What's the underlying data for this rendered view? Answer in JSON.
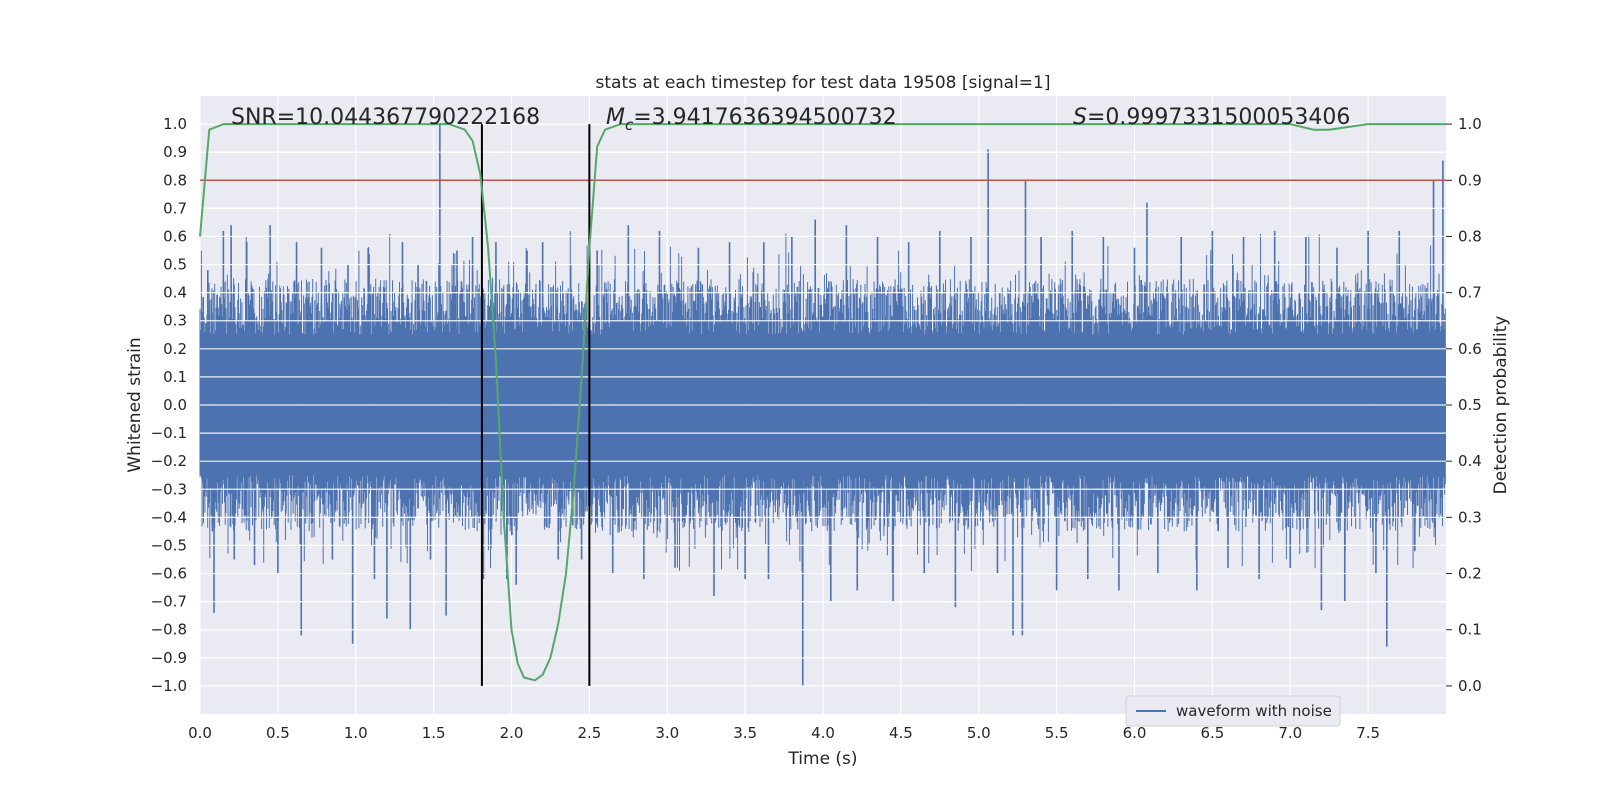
{
  "chart_data": {
    "type": "line",
    "title": "stats at each timestep for test data 19508 [signal=1]",
    "xlabel": "Time (s)",
    "ylabel_left": "Whitened strain",
    "ylabel_right": "Detection probability",
    "xlim": [
      0.0,
      8.0
    ],
    "ylim_left": [
      -1.1,
      1.1
    ],
    "ylim_right": [
      -0.05,
      1.05
    ],
    "x_ticks": [
      0.0,
      0.5,
      1.0,
      1.5,
      2.0,
      2.5,
      3.0,
      3.5,
      4.0,
      4.5,
      5.0,
      5.5,
      6.0,
      6.5,
      7.0,
      7.5
    ],
    "x_tick_labels": [
      "0.0",
      "0.5",
      "1.0",
      "1.5",
      "2.0",
      "2.5",
      "3.0",
      "3.5",
      "4.0",
      "4.5",
      "5.0",
      "5.5",
      "6.0",
      "6.5",
      "7.0",
      "7.5"
    ],
    "y_left_ticks": [
      1.0,
      0.9,
      0.8,
      0.7,
      0.6,
      0.5,
      0.4,
      0.3,
      0.2,
      0.1,
      0.0,
      -0.1,
      -0.2,
      -0.3,
      -0.4,
      -0.5,
      -0.6,
      -0.7,
      -0.8,
      -0.9,
      -1.0
    ],
    "y_left_tick_labels": [
      "1.0",
      "0.9",
      "0.8",
      "0.7",
      "0.6",
      "0.5",
      "0.4",
      "0.3",
      "0.2",
      "0.1",
      "0.0",
      "−0.1",
      "−0.2",
      "−0.3",
      "−0.4",
      "−0.5",
      "−0.6",
      "−0.7",
      "−0.8",
      "−0.9",
      "−1.0"
    ],
    "y_right_ticks": [
      1.0,
      0.9,
      0.8,
      0.7,
      0.6,
      0.5,
      0.4,
      0.3,
      0.2,
      0.1,
      0.0
    ],
    "y_right_tick_labels": [
      "1.0",
      "0.9",
      "0.8",
      "0.7",
      "0.6",
      "0.5",
      "0.4",
      "0.3",
      "0.2",
      "0.1",
      "0.0"
    ],
    "annotations": {
      "snr": "SNR=10.044367790222168",
      "mc_symbol": "M",
      "mc_sub": "c",
      "mc_value": "=3.9417636394500732",
      "s_symbol": "S",
      "s_value": "=0.9997331500053406"
    },
    "series": [
      {
        "name": "waveform with noise",
        "axis": "left",
        "color": "#4c72b0",
        "band_low": -0.2,
        "band_high": 0.2,
        "spikes": [
          {
            "x": 0.05,
            "y": 0.48
          },
          {
            "x": 0.08,
            "y": -0.45
          },
          {
            "x": 0.09,
            "y": -0.74
          },
          {
            "x": 0.15,
            "y": 0.62
          },
          {
            "x": 0.2,
            "y": 0.64
          },
          {
            "x": 0.22,
            "y": -0.55
          },
          {
            "x": 0.3,
            "y": 0.58
          },
          {
            "x": 0.35,
            "y": -0.57
          },
          {
            "x": 0.45,
            "y": 0.64
          },
          {
            "x": 0.5,
            "y": -0.6
          },
          {
            "x": 0.62,
            "y": 0.58
          },
          {
            "x": 0.65,
            "y": -0.82
          },
          {
            "x": 0.78,
            "y": 0.56
          },
          {
            "x": 0.85,
            "y": -0.55
          },
          {
            "x": 0.95,
            "y": 0.5
          },
          {
            "x": 0.98,
            "y": -0.85
          },
          {
            "x": 1.08,
            "y": 0.56
          },
          {
            "x": 1.12,
            "y": -0.62
          },
          {
            "x": 1.2,
            "y": -0.76
          },
          {
            "x": 1.3,
            "y": 0.58
          },
          {
            "x": 1.35,
            "y": -0.8
          },
          {
            "x": 1.4,
            "y": 0.5
          },
          {
            "x": 1.48,
            "y": -0.55
          },
          {
            "x": 1.54,
            "y": 1.0
          },
          {
            "x": 1.58,
            "y": -0.75
          },
          {
            "x": 1.65,
            "y": 0.55
          },
          {
            "x": 1.75,
            "y": 0.6
          },
          {
            "x": 1.82,
            "y": -0.62
          },
          {
            "x": 1.9,
            "y": 0.58
          },
          {
            "x": 1.97,
            "y": -0.62
          },
          {
            "x": 2.03,
            "y": -0.64
          },
          {
            "x": 2.1,
            "y": 0.55
          },
          {
            "x": 2.2,
            "y": 0.58
          },
          {
            "x": 2.3,
            "y": -0.55
          },
          {
            "x": 2.38,
            "y": 0.5
          },
          {
            "x": 2.45,
            "y": -0.55
          },
          {
            "x": 2.55,
            "y": 0.55
          },
          {
            "x": 2.65,
            "y": -0.6
          },
          {
            "x": 2.75,
            "y": 0.64
          },
          {
            "x": 2.85,
            "y": -0.62
          },
          {
            "x": 2.95,
            "y": 0.62
          },
          {
            "x": 3.05,
            "y": -0.58
          },
          {
            "x": 3.2,
            "y": 0.56
          },
          {
            "x": 3.3,
            "y": -0.68
          },
          {
            "x": 3.4,
            "y": 0.58
          },
          {
            "x": 3.5,
            "y": -0.62
          },
          {
            "x": 3.62,
            "y": 0.58
          },
          {
            "x": 3.65,
            "y": -0.62
          },
          {
            "x": 3.8,
            "y": 0.6
          },
          {
            "x": 3.87,
            "y": -1.0
          },
          {
            "x": 3.95,
            "y": 0.66
          },
          {
            "x": 4.05,
            "y": -0.7
          },
          {
            "x": 4.15,
            "y": 0.64
          },
          {
            "x": 4.22,
            "y": -0.66
          },
          {
            "x": 4.35,
            "y": 0.6
          },
          {
            "x": 4.45,
            "y": -0.7
          },
          {
            "x": 4.55,
            "y": 0.58
          },
          {
            "x": 4.65,
            "y": -0.6
          },
          {
            "x": 4.75,
            "y": 0.62
          },
          {
            "x": 4.85,
            "y": -0.72
          },
          {
            "x": 4.95,
            "y": 0.6
          },
          {
            "x": 5.06,
            "y": 0.91
          },
          {
            "x": 5.12,
            "y": -0.6
          },
          {
            "x": 5.22,
            "y": -0.82
          },
          {
            "x": 5.28,
            "y": -0.82
          },
          {
            "x": 5.3,
            "y": 0.8
          },
          {
            "x": 5.4,
            "y": 0.6
          },
          {
            "x": 5.5,
            "y": -0.66
          },
          {
            "x": 5.6,
            "y": 0.62
          },
          {
            "x": 5.7,
            "y": -0.62
          },
          {
            "x": 5.8,
            "y": 0.6
          },
          {
            "x": 5.9,
            "y": -0.66
          },
          {
            "x": 6.0,
            "y": 0.56
          },
          {
            "x": 6.08,
            "y": 0.72
          },
          {
            "x": 6.15,
            "y": -0.6
          },
          {
            "x": 6.3,
            "y": 0.6
          },
          {
            "x": 6.4,
            "y": -0.66
          },
          {
            "x": 6.5,
            "y": 0.62
          },
          {
            "x": 6.6,
            "y": -0.58
          },
          {
            "x": 6.7,
            "y": 0.6
          },
          {
            "x": 6.8,
            "y": -0.62
          },
          {
            "x": 6.9,
            "y": 0.62
          },
          {
            "x": 7.0,
            "y": -0.58
          },
          {
            "x": 7.1,
            "y": 0.6
          },
          {
            "x": 7.2,
            "y": -0.73
          },
          {
            "x": 7.3,
            "y": 0.56
          },
          {
            "x": 7.35,
            "y": -0.7
          },
          {
            "x": 7.5,
            "y": 0.62
          },
          {
            "x": 7.55,
            "y": -0.6
          },
          {
            "x": 7.62,
            "y": -0.86
          },
          {
            "x": 7.7,
            "y": 0.62
          },
          {
            "x": 7.8,
            "y": -0.52
          },
          {
            "x": 7.92,
            "y": 0.8
          },
          {
            "x": 7.98,
            "y": 0.87
          }
        ]
      },
      {
        "name": "detection probability",
        "axis": "right",
        "color": "#55a868",
        "x": [
          0.0,
          0.06,
          0.15,
          0.3,
          0.6,
          1.0,
          1.5,
          1.6,
          1.7,
          1.75,
          1.8,
          1.85,
          1.9,
          1.95,
          2.0,
          2.04,
          2.08,
          2.15,
          2.2,
          2.25,
          2.3,
          2.35,
          2.4,
          2.45,
          2.5,
          2.55,
          2.6,
          2.7,
          3.0,
          4.0,
          5.0,
          6.0,
          7.0,
          7.15,
          7.25,
          7.5,
          8.0
        ],
        "y": [
          0.8,
          0.99,
          1.0,
          1.0,
          1.0,
          1.0,
          1.0,
          1.0,
          0.99,
          0.97,
          0.91,
          0.78,
          0.58,
          0.3,
          0.1,
          0.04,
          0.015,
          0.01,
          0.02,
          0.05,
          0.11,
          0.2,
          0.35,
          0.55,
          0.78,
          0.96,
          0.99,
          1.0,
          1.0,
          1.0,
          1.0,
          1.0,
          1.0,
          0.99,
          0.99,
          1.0,
          1.0
        ]
      }
    ],
    "threshold": {
      "axis": "right",
      "value": 0.9,
      "color": "#c44e52"
    },
    "vertical_lines": [
      {
        "x": 1.81,
        "y_range": [
          -1.0,
          1.0
        ],
        "color": "#000000"
      },
      {
        "x": 2.5,
        "y_range": [
          -1.0,
          1.0
        ],
        "color": "#000000"
      }
    ],
    "legend": {
      "label": "waveform with noise",
      "location": "lower-right"
    },
    "style": {
      "background": "#eaeaf2",
      "grid_color": "#ffffff",
      "grid": true
    }
  }
}
